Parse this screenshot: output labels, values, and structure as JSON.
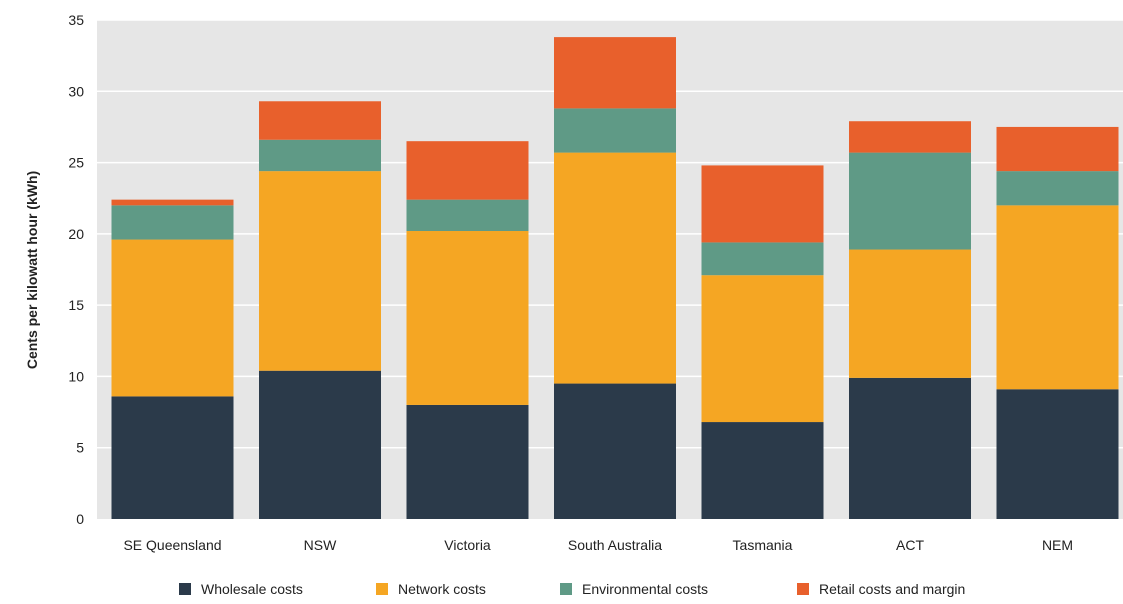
{
  "chart_data": {
    "type": "bar",
    "stacked": true,
    "title": "",
    "xlabel": "",
    "ylabel": "Cents per kilowatt hour (kWh)",
    "ylim": [
      0,
      35
    ],
    "yticks": [
      0,
      5,
      10,
      15,
      20,
      25,
      30,
      35
    ],
    "grid": true,
    "legend_position": "bottom",
    "plot_background": "#e6e6e6",
    "categories": [
      "SE Queensland",
      "NSW",
      "Victoria",
      "South Australia",
      "Tasmania",
      "ACT",
      "NEM"
    ],
    "series": [
      {
        "name": "Wholesale costs",
        "color": "#2b3a4a",
        "values": [
          8.6,
          10.4,
          8.0,
          9.5,
          6.8,
          9.9,
          9.1
        ]
      },
      {
        "name": "Network costs",
        "color": "#f5a623",
        "values": [
          11.0,
          14.0,
          12.2,
          16.2,
          10.3,
          9.0,
          12.9
        ]
      },
      {
        "name": "Environmental costs",
        "color": "#5f9a86",
        "values": [
          2.4,
          2.2,
          2.2,
          3.1,
          2.3,
          6.8,
          2.4
        ]
      },
      {
        "name": "Retail costs and margin",
        "color": "#e8602c",
        "values": [
          0.4,
          2.7,
          4.1,
          5.0,
          5.4,
          2.2,
          3.1
        ]
      }
    ]
  }
}
